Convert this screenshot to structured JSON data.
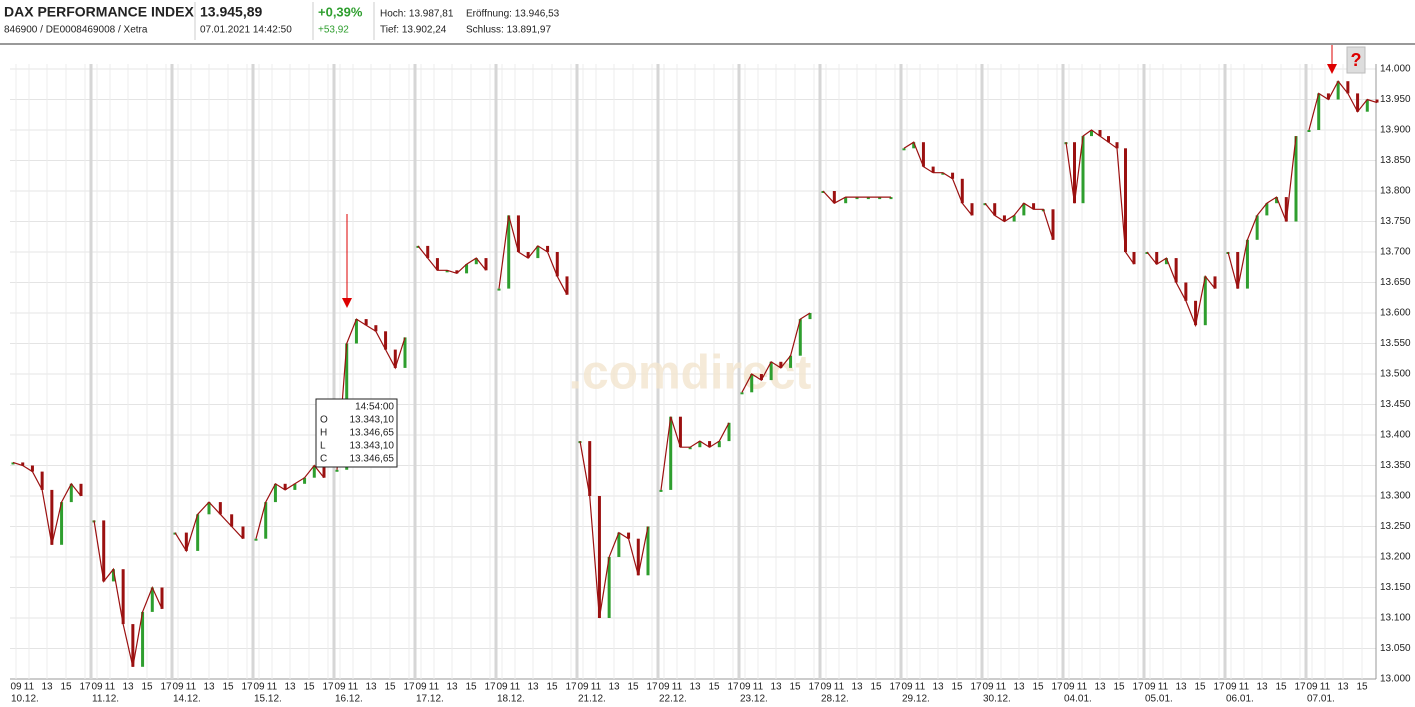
{
  "header": {
    "title": "DAX PERFORMANCE INDEX",
    "ids": "846900 / DE0008469008 / Xetra",
    "price": "13.945,89",
    "timestamp": "07.01.2021 14:42:50",
    "change_pct": "+0,39%",
    "change_abs": "+53,92",
    "high": "Hoch: 13.987,81",
    "open": "Eröffnung: 13.946,53",
    "low": "Tief: 13.902,24",
    "close": "Schluss: 13.891,97"
  },
  "chart_data": {
    "type": "candlestick",
    "watermark": ".comdirect",
    "up_color": "#2e9e2e",
    "down_color": "#9b1010",
    "ylim": [
      13000,
      14000
    ],
    "yticks": [
      {
        "value": 13000,
        "label": "13.000"
      },
      {
        "value": 13050,
        "label": "13.050"
      },
      {
        "value": 13100,
        "label": "13.100"
      },
      {
        "value": 13150,
        "label": "13.150"
      },
      {
        "value": 13200,
        "label": "13.200"
      },
      {
        "value": 13250,
        "label": "13.250"
      },
      {
        "value": 13300,
        "label": "13.300"
      },
      {
        "value": 13350,
        "label": "13.350"
      },
      {
        "value": 13400,
        "label": "13.400"
      },
      {
        "value": 13450,
        "label": "13.450"
      },
      {
        "value": 13500,
        "label": "13.500"
      },
      {
        "value": 13550,
        "label": "13.550"
      },
      {
        "value": 13600,
        "label": "13.600"
      },
      {
        "value": 13650,
        "label": "13.650"
      },
      {
        "value": 13700,
        "label": "13.700"
      },
      {
        "value": 13750,
        "label": "13.750"
      },
      {
        "value": 13800,
        "label": "13.800"
      },
      {
        "value": 13850,
        "label": "13.850"
      },
      {
        "value": 13900,
        "label": "13.900"
      },
      {
        "value": 13950,
        "label": "13.950"
      },
      {
        "value": 14000,
        "label": "14.000"
      }
    ],
    "hour_labels": [
      "09",
      "11",
      "13",
      "15",
      "17"
    ],
    "grid": true,
    "days": [
      {
        "label": "10.12.",
        "values": [
          13355,
          13350,
          13340,
          13310,
          13220,
          13290,
          13320,
          13300
        ]
      },
      {
        "label": "11.12.",
        "values": [
          13260,
          13160,
          13180,
          13090,
          13020,
          13110,
          13150,
          13115
        ]
      },
      {
        "label": "14.12.",
        "values": [
          13240,
          13210,
          13270,
          13290,
          13270,
          13250,
          13230
        ]
      },
      {
        "label": "15.12.",
        "values": [
          13230,
          13290,
          13320,
          13310,
          13320,
          13330,
          13350,
          13330
        ]
      },
      {
        "label": "16.12.",
        "values": [
          13343,
          13550,
          13590,
          13580,
          13570,
          13540,
          13510,
          13560
        ]
      },
      {
        "label": "17.12.",
        "values": [
          13710,
          13690,
          13670,
          13670,
          13665,
          13680,
          13690,
          13670
        ]
      },
      {
        "label": "18.12.",
        "values": [
          13640,
          13760,
          13700,
          13690,
          13710,
          13700,
          13660,
          13630
        ]
      },
      {
        "label": "21.12.",
        "values": [
          13390,
          13300,
          13100,
          13200,
          13240,
          13230,
          13170,
          13250
        ]
      },
      {
        "label": "22.12.",
        "values": [
          13310,
          13430,
          13380,
          13380,
          13390,
          13380,
          13390,
          13420
        ]
      },
      {
        "label": "23.12.",
        "values": [
          13470,
          13500,
          13490,
          13520,
          13510,
          13530,
          13590,
          13600
        ]
      },
      {
        "label": "28.12.",
        "values": [
          13800,
          13780,
          13790,
          13790,
          13790,
          13790,
          13790
        ]
      },
      {
        "label": "29.12.",
        "values": [
          13870,
          13880,
          13840,
          13830,
          13830,
          13820,
          13780,
          13760
        ]
      },
      {
        "label": "30.12.",
        "values": [
          13780,
          13760,
          13750,
          13760,
          13780,
          13770,
          13770,
          13720
        ]
      },
      {
        "label": "04.01.",
        "values": [
          13880,
          13780,
          13890,
          13900,
          13890,
          13880,
          13870,
          13700,
          13680
        ]
      },
      {
        "label": "05.01.",
        "values": [
          13700,
          13680,
          13690,
          13650,
          13620,
          13580,
          13660,
          13640
        ]
      },
      {
        "label": "06.01.",
        "values": [
          13700,
          13640,
          13720,
          13760,
          13780,
          13790,
          13750,
          13890
        ]
      },
      {
        "label": "07.01.",
        "values": [
          13900,
          13960,
          13950,
          13980,
          13960,
          13930,
          13950,
          13945
        ]
      }
    ],
    "tooltip": {
      "time": "14:54:00",
      "rows": [
        {
          "key": "O",
          "value": "13.343,10"
        },
        {
          "key": "H",
          "value": "13.346,65"
        },
        {
          "key": "L",
          "value": "13.343,10"
        },
        {
          "key": "C",
          "value": "13.346,65"
        }
      ]
    }
  }
}
